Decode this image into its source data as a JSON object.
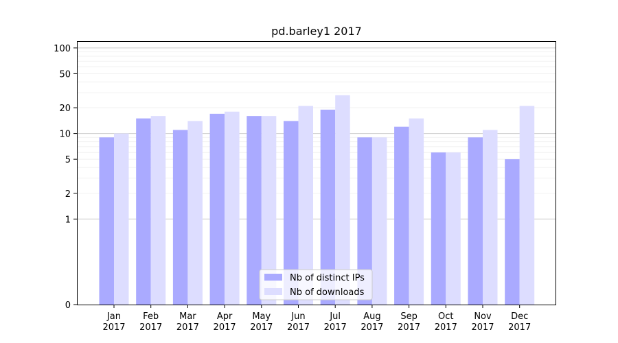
{
  "chart_data": {
    "type": "bar",
    "title": "pd.barley1 2017",
    "xlabel": "",
    "ylabel": "",
    "categories": [
      "Jan\n2017",
      "Feb\n2017",
      "Mar\n2017",
      "Apr\n2017",
      "May\n2017",
      "Jun\n2017",
      "Jul\n2017",
      "Aug\n2017",
      "Sep\n2017",
      "Oct\n2017",
      "Nov\n2017",
      "Dec\n2017"
    ],
    "series": [
      {
        "name": "Nb of distinct IPs",
        "color": "#aaaaff",
        "values": [
          9,
          15,
          11,
          17,
          16,
          14,
          19,
          9,
          12,
          6,
          9,
          5
        ]
      },
      {
        "name": "Nb of downloads",
        "color": "#ddddff",
        "values": [
          10,
          16,
          14,
          18,
          16,
          21,
          28,
          9,
          15,
          6,
          11,
          21
        ]
      }
    ],
    "y_scale": "symlog",
    "ylim": [
      0,
      120
    ],
    "yticks": [
      0,
      1,
      2,
      5,
      10,
      20,
      50,
      100
    ],
    "ytick_labels": [
      "0",
      "1",
      "2",
      "5",
      "10",
      "20",
      "50",
      "100"
    ],
    "grid": true,
    "legend_position": "lower center"
  }
}
